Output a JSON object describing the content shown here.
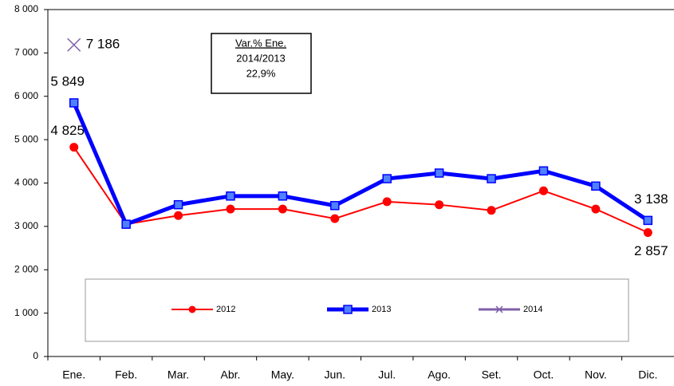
{
  "chart_data": {
    "type": "line",
    "categories": [
      "Ene.",
      "Feb.",
      "Mar.",
      "Abr.",
      "May.",
      "Jun.",
      "Jul.",
      "Ago.",
      "Set.",
      "Oct.",
      "Nov.",
      "Dic."
    ],
    "series": [
      {
        "name": "2012",
        "color": "#ff0000",
        "values": [
          4825,
          3050,
          3250,
          3400,
          3400,
          3180,
          3570,
          3500,
          3370,
          3820,
          3400,
          2857
        ],
        "value_labels": [
          "4 825",
          null,
          null,
          null,
          null,
          null,
          null,
          null,
          null,
          null,
          null,
          "2 857"
        ]
      },
      {
        "name": "2013",
        "color": "#0000ff",
        "values": [
          5849,
          3050,
          3500,
          3700,
          3700,
          3480,
          4100,
          4230,
          4100,
          4280,
          3930,
          3138
        ],
        "value_labels": [
          "5 849",
          null,
          null,
          null,
          null,
          null,
          null,
          null,
          null,
          null,
          null,
          "3 138"
        ]
      },
      {
        "name": "2014",
        "color": "#7f5fa8",
        "values": [
          7186,
          null,
          null,
          null,
          null,
          null,
          null,
          null,
          null,
          null,
          null,
          null
        ],
        "value_labels": [
          "7 186",
          null,
          null,
          null,
          null,
          null,
          null,
          null,
          null,
          null,
          null,
          null
        ]
      }
    ],
    "annotation": [
      "Var.% Ene.",
      "2014/2013",
      "22,9%"
    ],
    "ylim": [
      0,
      8000
    ],
    "yticks": [
      0,
      {
        "value": 1000,
        "label": "1 000"
      },
      {
        "value": 2000,
        "label": "2 000"
      },
      {
        "value": 3000,
        "label": "3 000"
      },
      {
        "value": 4000,
        "label": "4 000"
      },
      {
        "value": 5000,
        "label": "5 000"
      },
      {
        "value": 6000,
        "label": "6 000"
      },
      {
        "value": 7000,
        "label": "7 000"
      },
      {
        "value": 8000,
        "label": "8 000"
      }
    ],
    "legend": "bottom",
    "grid": false
  }
}
